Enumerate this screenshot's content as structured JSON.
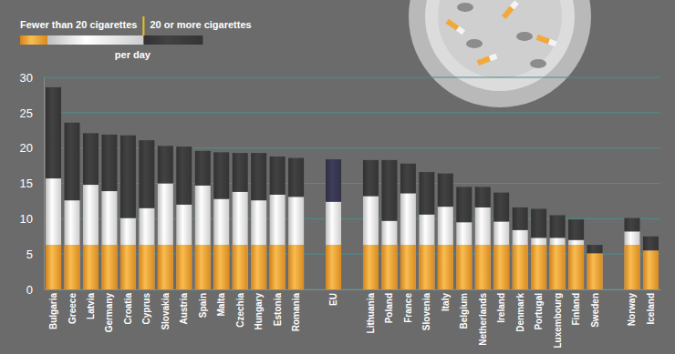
{
  "chart_data": {
    "type": "bar",
    "stacked": true,
    "grid": true,
    "legend": "top-left",
    "annotations": [
      "per day"
    ],
    "categories": [
      "Bulgaria",
      "Greece",
      "Latvia",
      "Germany",
      "Croatia",
      "Cyprus",
      "Slovakia",
      "Austria",
      "Spain",
      "Malta",
      "Czechia",
      "Hungary",
      "Estonia",
      "Romania",
      null,
      "EU",
      null,
      "Lithuania",
      "Poland",
      "France",
      "Slovenia",
      "Italy",
      "Belgium",
      "Netherlands",
      "Ireland",
      "Denmark",
      "Portugal",
      "Luxembourg",
      "Finland",
      "Sweden",
      null,
      "Norway",
      "Iceland"
    ],
    "series": [
      {
        "name": "Fewer than 20 cigarettes",
        "color": "#e4e4e4",
        "values": [
          15.7,
          12.6,
          14.8,
          13.9,
          10.1,
          11.5,
          15.0,
          12.0,
          14.7,
          12.8,
          13.8,
          12.6,
          13.4,
          13.1,
          null,
          12.4,
          null,
          13.2,
          9.7,
          13.6,
          10.6,
          11.7,
          9.5,
          11.6,
          9.6,
          8.4,
          7.3,
          7.3,
          7.0,
          5.1,
          null,
          8.2,
          5.5
        ]
      },
      {
        "name": "20 or more cigarettes",
        "color": "#3a3a3a",
        "colors": [
          "#3a3a3a",
          "#3a3a3a",
          "#3a3a3a",
          "#3a3a3a",
          "#3a3a3a",
          "#3a3a3a",
          "#3a3a3a",
          "#3a3a3a",
          "#3a3a3a",
          "#3a3a3a",
          "#3a3a3a",
          "#3a3a3a",
          "#3a3a3a",
          "#3a3a3a",
          "#3a3a3a",
          "#37364f",
          "#3a3a3a",
          "#3a3a3a",
          "#3a3a3a",
          "#3a3a3a",
          "#3a3a3a",
          "#3a3a3a",
          "#3a3a3a",
          "#3a3a3a",
          "#3a3a3a",
          "#3a3a3a",
          "#3a3a3a",
          "#3a3a3a",
          "#3a3a3a",
          "#3a3a3a",
          "#3a3a3a",
          "#3a3a3a",
          "#3a3a3a"
        ],
        "values": [
          12.9,
          11.0,
          7.3,
          8.0,
          11.7,
          9.6,
          5.3,
          8.2,
          4.9,
          6.6,
          5.5,
          6.7,
          5.4,
          5.5,
          null,
          6.0,
          null,
          5.1,
          8.6,
          4.2,
          6.0,
          4.7,
          5.0,
          2.9,
          4.1,
          3.2,
          4.1,
          3.2,
          2.9,
          1.2,
          null,
          1.9,
          2.0
        ]
      }
    ],
    "ylim": [
      0,
      30
    ],
    "yticks": [
      0,
      5,
      10,
      15,
      20,
      25,
      30
    ]
  }
}
